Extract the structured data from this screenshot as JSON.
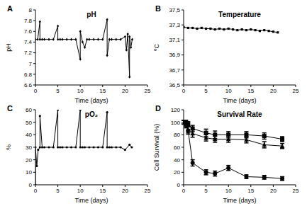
{
  "chart_data": [
    {
      "type": "line",
      "panel_label": "A",
      "title": "pH",
      "xlabel": "Time (days)",
      "ylabel": "pH",
      "xlim": [
        0,
        25
      ],
      "xticks": [
        0,
        5,
        10,
        15,
        20,
        25
      ],
      "ylim": [
        6.6,
        8
      ],
      "yticks": [
        6.6,
        6.8,
        7,
        7.2,
        7.4,
        7.6,
        7.8,
        8
      ],
      "x": [
        0,
        0.5,
        1,
        1,
        1.5,
        2,
        3,
        4,
        5,
        5,
        5.5,
        6,
        7,
        8,
        9,
        10,
        10,
        10.5,
        11,
        11.5,
        12,
        13,
        14,
        15,
        16,
        16,
        16.5,
        17,
        18,
        19,
        20,
        20.3,
        20.6,
        21,
        21,
        21.3,
        21.6
      ],
      "series": [
        {
          "color": "#000000",
          "marker": "diamond",
          "values": [
            7.45,
            7.45,
            7.78,
            7.45,
            7.45,
            7.45,
            7.45,
            7.45,
            7.7,
            7.45,
            7.45,
            7.45,
            7.45,
            7.45,
            7.45,
            7.08,
            7.6,
            7.4,
            7.3,
            7.45,
            7.45,
            7.45,
            7.45,
            7.45,
            7.82,
            7.15,
            7.45,
            7.45,
            7.45,
            7.45,
            7.5,
            7.25,
            7.55,
            6.75,
            7.5,
            7.3,
            7.45
          ]
        }
      ]
    },
    {
      "type": "line",
      "panel_label": "B",
      "title": "Temperature",
      "xlabel": "Time (days)",
      "ylabel": "ºC",
      "xlim": [
        0,
        25
      ],
      "xticks": [
        0,
        5,
        10,
        15,
        20,
        25
      ],
      "ylim": [
        36.5,
        37.5
      ],
      "yticks": [
        {
          "value": 36.5,
          "label": "36,5"
        },
        {
          "value": 36.7,
          "label": "36,7"
        },
        {
          "value": 36.9,
          "label": "36,9"
        },
        {
          "value": 37.1,
          "label": "37,1"
        },
        {
          "value": 37.3,
          "label": "37,3"
        },
        {
          "value": 37.5,
          "label": "37,5"
        }
      ],
      "x": [
        0,
        1,
        2,
        3,
        4,
        5,
        6,
        7,
        8,
        9,
        10,
        11,
        12,
        13,
        14,
        15,
        16,
        17,
        18,
        19,
        20,
        21
      ],
      "series": [
        {
          "color": "#000000",
          "marker": "square",
          "values": [
            37.27,
            37.26,
            37.26,
            37.25,
            37.26,
            37.25,
            37.25,
            37.24,
            37.25,
            37.24,
            37.25,
            37.24,
            37.23,
            37.24,
            37.23,
            37.24,
            37.23,
            37.22,
            37.23,
            37.22,
            37.21,
            37.2
          ]
        }
      ]
    },
    {
      "type": "line",
      "panel_label": "C",
      "title": "pO₂",
      "xlabel": "Time (days)",
      "ylabel": "%",
      "xlim": [
        0,
        25
      ],
      "xticks": [
        0,
        5,
        10,
        15,
        20,
        25
      ],
      "ylim": [
        0,
        60
      ],
      "yticks": [
        0,
        10,
        20,
        30,
        40,
        50,
        60
      ],
      "x": [
        0,
        0,
        0.3,
        0.6,
        1,
        1,
        1.5,
        2,
        3,
        4,
        5,
        5,
        5.5,
        6,
        7,
        8,
        9,
        10,
        10,
        10.5,
        11,
        12,
        13,
        14,
        15,
        16,
        16,
        16.5,
        17,
        18,
        19,
        20,
        21,
        21.5
      ],
      "series": [
        {
          "color": "#000000",
          "marker": "circle",
          "values": [
            0,
            30,
            15,
            28,
            30,
            55,
            30,
            30,
            30,
            30,
            60,
            30,
            30,
            30,
            30,
            30,
            30,
            60,
            30,
            30,
            30,
            30,
            30,
            30,
            30,
            58,
            30,
            30,
            30,
            30,
            30,
            28,
            32,
            30
          ]
        }
      ]
    },
    {
      "type": "line",
      "panel_label": "D",
      "title": "Survival Rate",
      "xlabel": "Time (days)",
      "ylabel": "Cell Survival (%)",
      "xlim": [
        0,
        25
      ],
      "xticks": [
        0,
        5,
        10,
        15,
        20,
        25
      ],
      "ylim": [
        0,
        120
      ],
      "yticks": [
        0,
        20,
        40,
        60,
        80,
        100,
        120
      ],
      "x": [
        0,
        0.5,
        1,
        2,
        5,
        7,
        10,
        14,
        18,
        22
      ],
      "series": [
        {
          "color": "#000000",
          "marker": "square",
          "values": [
            100,
            100,
            97,
            90,
            83,
            80,
            80,
            80,
            78,
            73
          ],
          "errors": [
            3,
            3,
            4,
            5,
            6,
            6,
            5,
            5,
            5,
            4
          ]
        },
        {
          "color": "#000000",
          "marker": "triangle",
          "values": [
            100,
            100,
            88,
            82,
            75,
            73,
            73,
            72,
            64,
            62
          ],
          "errors": [
            3,
            3,
            5,
            6,
            5,
            5,
            5,
            5,
            5,
            4
          ]
        },
        {
          "color": "#000000",
          "marker": "circle",
          "values": [
            100,
            95,
            87,
            35,
            20,
            18,
            27,
            13,
            12,
            10
          ],
          "errors": [
            3,
            4,
            6,
            5,
            4,
            4,
            4,
            3,
            3,
            3
          ]
        }
      ]
    }
  ]
}
